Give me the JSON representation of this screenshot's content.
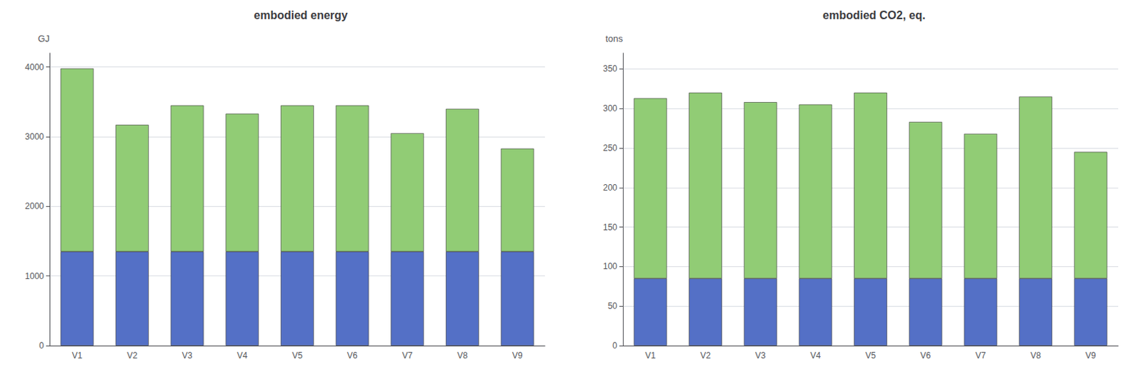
{
  "chart_data": [
    {
      "type": "bar",
      "title": "embodied energy",
      "ylabel": "GJ",
      "categories": [
        "V1",
        "V2",
        "V3",
        "V4",
        "V5",
        "V6",
        "V7",
        "V8",
        "V9"
      ],
      "stacked": true,
      "series": [
        {
          "values": [
            1350,
            1350,
            1350,
            1350,
            1350,
            1350,
            1350,
            1350,
            1350
          ]
        },
        {
          "values": [
            2630,
            1820,
            2100,
            1980,
            2100,
            2100,
            1700,
            2050,
            1480
          ]
        }
      ],
      "ylim": [
        0,
        4200
      ],
      "yticks": [
        0,
        1000,
        2000,
        3000,
        4000
      ],
      "grid": true
    },
    {
      "type": "bar",
      "title": "embodied CO2, eq.",
      "ylabel": "tons",
      "categories": [
        "V1",
        "V2",
        "V3",
        "V4",
        "V5",
        "V6",
        "V7",
        "V8",
        "V9"
      ],
      "stacked": true,
      "series": [
        {
          "values": [
            85,
            85,
            85,
            85,
            85,
            85,
            85,
            85,
            85
          ]
        },
        {
          "values": [
            228,
            235,
            223,
            220,
            235,
            198,
            183,
            230,
            160
          ]
        }
      ],
      "ylim": [
        0,
        370
      ],
      "yticks": [
        0,
        50,
        100,
        150,
        200,
        250,
        300,
        350
      ],
      "grid": true
    }
  ]
}
